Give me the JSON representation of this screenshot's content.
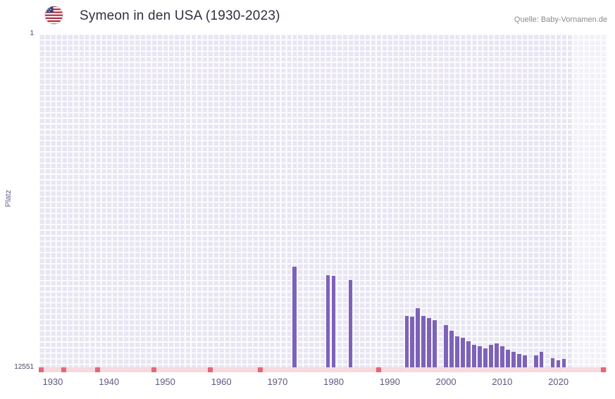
{
  "header": {
    "title": "Symeon in den USA (1930-2023)",
    "source": "Quelle: Baby-Vornamen.de",
    "flag_icon": "us-flag-icon"
  },
  "chart_data": {
    "type": "bar",
    "title": "Symeon in den USA (1930-2023)",
    "ylabel": "Platz",
    "xlabel": "",
    "legend": "none",
    "grid": "on",
    "y_axis": {
      "scale": "log",
      "inverted": true,
      "min": 1,
      "max": 12551,
      "top_label": "1",
      "bottom_label": "12551"
    },
    "x_axis": {
      "range_start": 1927.5,
      "range_end": 2028.7,
      "tick_years": [
        1930,
        1940,
        1950,
        1960,
        1970,
        1980,
        1990,
        2000,
        2010,
        2020
      ]
    },
    "bars": [
      {
        "year": 1973,
        "rank": 700
      },
      {
        "year": 1979,
        "rank": 880
      },
      {
        "year": 1980,
        "rank": 900
      },
      {
        "year": 1983,
        "rank": 1020
      },
      {
        "year": 1993,
        "rank": 2800
      },
      {
        "year": 1994,
        "rank": 2850
      },
      {
        "year": 1995,
        "rank": 2250
      },
      {
        "year": 1996,
        "rank": 2800
      },
      {
        "year": 1997,
        "rank": 2950
      },
      {
        "year": 1998,
        "rank": 3150
      },
      {
        "year": 2000,
        "rank": 3600
      },
      {
        "year": 2001,
        "rank": 4250
      },
      {
        "year": 2002,
        "rank": 4950
      },
      {
        "year": 2003,
        "rank": 5150
      },
      {
        "year": 2004,
        "rank": 5700
      },
      {
        "year": 2005,
        "rank": 6300
      },
      {
        "year": 2006,
        "rank": 6550
      },
      {
        "year": 2007,
        "rank": 6950
      },
      {
        "year": 2008,
        "rank": 6300
      },
      {
        "year": 2009,
        "rank": 6000
      },
      {
        "year": 2010,
        "rank": 6550
      },
      {
        "year": 2011,
        "rank": 7200
      },
      {
        "year": 2012,
        "rank": 7650
      },
      {
        "year": 2013,
        "rank": 8100
      },
      {
        "year": 2014,
        "rank": 8450
      },
      {
        "year": 2016,
        "rank": 8450
      },
      {
        "year": 2017,
        "rank": 7650
      },
      {
        "year": 2019,
        "rank": 9150
      },
      {
        "year": 2020,
        "rank": 9700
      },
      {
        "year": 2021,
        "rank": 9400
      }
    ],
    "no_data_tick_years": [
      1928,
      1932,
      1938,
      1948,
      1958,
      1967,
      1988,
      2028
    ],
    "highlight_band": {
      "start_year": 2022.6
    },
    "colors": {
      "bar": "#7d62b8",
      "plot_bg": "#e9e6f3",
      "grid_line": "#ffffff",
      "axis_strip": "#f7d9de",
      "axis_strip_tick": "#e2677a",
      "highlight_band": "rgba(255,255,255,0.45)",
      "title": "#332e3e",
      "axis_label": "#5f5781"
    }
  }
}
